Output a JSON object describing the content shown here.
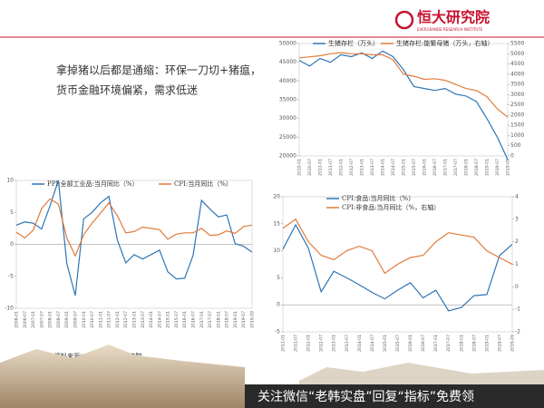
{
  "header": {
    "logo": "恒大研究院",
    "logo_subtitle": "EVERGRANDE RESEARCH INSTITUTE"
  },
  "headline": [
    "拿掉猪以后都是通缩：环保一刀切+猪瘟，",
    "货币金融环境偏紧，需求低迷"
  ],
  "source": "资料来源：WIND，恒大研究院",
  "banner": "关注微信“老韩实盘”回复“指标”免费领",
  "chart_data": [
    {
      "type": "line",
      "categories": [
        "2010-01",
        "2010-07",
        "2011-01",
        "2011-07",
        "2012-01",
        "2012-07",
        "2013-01",
        "2013-07",
        "2014-01",
        "2014-07",
        "2015-01",
        "2015-07",
        "2016-01",
        "2016-07",
        "2017-01",
        "2017-07",
        "2018-01",
        "2018-07",
        "2019-01",
        "2019-07",
        "2019-09"
      ],
      "series": [
        {
          "name": "生猪存栏（万头）",
          "color": "#2e75b6",
          "values": [
            45500,
            44000,
            46000,
            45000,
            47000,
            46500,
            47500,
            46000,
            48000,
            46500,
            43000,
            38500,
            38000,
            37500,
            38000,
            36500,
            36000,
            34500,
            30000,
            25000,
            19000
          ]
        },
        {
          "name": "生猪存栏:能繁母猪（万头，右轴）",
          "color": "#e07b39",
          "axis": "y2",
          "values": [
            4800,
            4850,
            4900,
            5000,
            5050,
            5000,
            5000,
            4950,
            4950,
            4700,
            4000,
            3900,
            3750,
            3780,
            3700,
            3500,
            3300,
            3200,
            2900,
            2300,
            1900
          ]
        }
      ],
      "ylim": [
        20000,
        50000
      ],
      "yticks": [
        20000,
        25000,
        30000,
        35000,
        40000,
        45000,
        50000
      ],
      "y2lim": [
        0,
        5500
      ],
      "y2ticks": [
        0,
        500,
        1000,
        1500,
        2000,
        2500,
        3000,
        3500,
        4000,
        4500,
        5000,
        5500
      ]
    },
    {
      "type": "line",
      "categories": [
        "2006-01",
        "2006-07",
        "2007-01",
        "2007-07",
        "2008-01",
        "2008-07",
        "2009-01",
        "2009-07",
        "2010-01",
        "2010-07",
        "2011-01",
        "2011-07",
        "2012-01",
        "2012-07",
        "2013-01",
        "2013-07",
        "2014-01",
        "2014-07",
        "2015-01",
        "2015-07",
        "2016-01",
        "2016-07",
        "2017-01",
        "2017-07",
        "2018-01",
        "2018-07",
        "2019-01",
        "2019-07",
        "2019-09"
      ],
      "series": [
        {
          "name": "PPI:全部工业品:当月同比（%）",
          "color": "#2e75b6",
          "values": [
            3,
            3.5,
            3.3,
            2.4,
            6,
            10,
            -3,
            -8,
            4,
            5,
            6.5,
            7.5,
            0.7,
            -2.9,
            -1.6,
            -2.3,
            -1.6,
            -0.9,
            -4.3,
            -5.4,
            -5.3,
            -1.7,
            6.9,
            5.5,
            4.3,
            4.6,
            0.1,
            -0.3,
            -1.2
          ]
        },
        {
          "name": "CPI:当月同比（%）",
          "color": "#e07b39",
          "values": [
            1.9,
            1.0,
            2.2,
            5.6,
            7.1,
            6.3,
            1.0,
            -1.8,
            1.5,
            3.3,
            4.9,
            6.5,
            4.5,
            1.8,
            2.0,
            2.7,
            2.5,
            2.3,
            0.8,
            1.6,
            1.8,
            1.8,
            2.5,
            1.4,
            1.5,
            2.1,
            1.7,
            2.8,
            3.0
          ]
        }
      ],
      "ylim": [
        -10,
        10
      ],
      "yticks": [
        -10,
        -5,
        0,
        5,
        10
      ]
    },
    {
      "type": "line",
      "categories": [
        "2011-01",
        "2011-07",
        "2012-01",
        "2012-07",
        "2013-01",
        "2013-07",
        "2014-01",
        "2014-07",
        "2015-01",
        "2015-07",
        "2016-01",
        "2016-07",
        "2017-01",
        "2017-07",
        "2018-01",
        "2018-07",
        "2019-01",
        "2019-07",
        "2019-09"
      ],
      "series": [
        {
          "name": "CPI:食品:当月同比（%）",
          "color": "#2e75b6",
          "values": [
            10.3,
            14.8,
            10.5,
            2.4,
            6.2,
            5.0,
            3.7,
            2.3,
            1.1,
            2.7,
            4.1,
            1.3,
            2.7,
            -1.1,
            -0.5,
            1.7,
            1.9,
            9.1,
            11.2
          ]
        },
        {
          "name": "CPI:非食品:当月同比（%，右轴）",
          "color": "#e07b39",
          "axis": "y2",
          "values": [
            2.6,
            3.0,
            2.0,
            1.4,
            1.2,
            1.6,
            1.8,
            1.6,
            0.6,
            1.0,
            1.3,
            1.4,
            2.0,
            2.4,
            2.3,
            2.2,
            1.6,
            1.3,
            1.0
          ]
        }
      ],
      "ylim": [
        -5,
        20
      ],
      "yticks": [
        -5,
        0,
        5,
        10,
        15,
        20
      ],
      "y2lim": [
        -2,
        4
      ],
      "y2ticks": [
        -2,
        -1,
        0,
        1,
        2,
        3,
        4
      ]
    }
  ]
}
